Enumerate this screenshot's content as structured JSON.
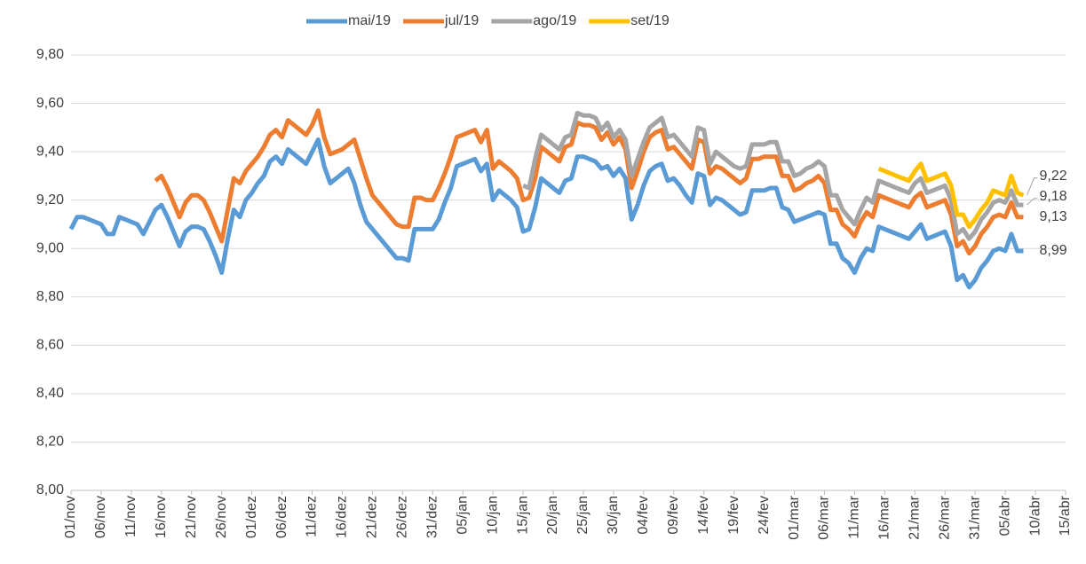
{
  "chart_data": {
    "type": "line",
    "categories": [
      "01/nov",
      null,
      null,
      null,
      null,
      "06/nov",
      null,
      null,
      null,
      null,
      "11/nov",
      null,
      null,
      null,
      null,
      "16/nov",
      null,
      null,
      null,
      null,
      "21/nov",
      null,
      null,
      null,
      null,
      "26/nov",
      null,
      null,
      null,
      null,
      "01/dez",
      null,
      null,
      null,
      null,
      "06/dez",
      null,
      null,
      null,
      null,
      "11/dez",
      null,
      null,
      null,
      null,
      "16/dez",
      null,
      null,
      null,
      null,
      "21/dez",
      null,
      null,
      null,
      null,
      "26/dez",
      null,
      null,
      null,
      null,
      "31/dez",
      null,
      null,
      null,
      null,
      "05/jan",
      null,
      null,
      null,
      null,
      "10/jan",
      null,
      null,
      null,
      null,
      "15/jan",
      null,
      null,
      null,
      null,
      "20/jan",
      null,
      null,
      null,
      null,
      "25/jan",
      null,
      null,
      null,
      null,
      "30/jan",
      null,
      null,
      null,
      null,
      "04/fev",
      null,
      null,
      null,
      null,
      "09/fev",
      null,
      null,
      null,
      null,
      "14/fev",
      null,
      null,
      null,
      null,
      "19/fev",
      null,
      null,
      null,
      null,
      "24/fev",
      null,
      null,
      null,
      null,
      "01/mar",
      null,
      null,
      null,
      null,
      "06/mar",
      null,
      null,
      null,
      null,
      "11/mar",
      null,
      null,
      null,
      null,
      "16/mar",
      null,
      null,
      null,
      null,
      "21/mar",
      null,
      null,
      null,
      null,
      "26/mar",
      null,
      null,
      null,
      null,
      "31/mar",
      null,
      null,
      null,
      null,
      "05/abr",
      null,
      null,
      null,
      null,
      "10/abr",
      null,
      null,
      null,
      null,
      "15/abr"
    ],
    "series": [
      {
        "name": "mai/19",
        "color": "#5b9bd5",
        "last_label": "8,99",
        "values": [
          9.08,
          9.13,
          9.13,
          9.12,
          9.11,
          9.1,
          9.06,
          9.06,
          9.13,
          9.12,
          9.11,
          9.1,
          9.06,
          9.11,
          9.16,
          9.18,
          9.13,
          9.07,
          9.01,
          9.07,
          9.09,
          9.09,
          9.08,
          9.03,
          8.97,
          8.9,
          9.04,
          9.16,
          9.13,
          9.2,
          9.23,
          9.27,
          9.3,
          9.36,
          9.38,
          9.35,
          9.41,
          9.39,
          9.37,
          9.35,
          9.4,
          9.45,
          9.34,
          9.27,
          9.29,
          9.31,
          9.33,
          9.27,
          9.18,
          9.11,
          9.08,
          9.05,
          9.02,
          8.99,
          8.96,
          8.96,
          8.95,
          9.08,
          9.08,
          9.08,
          9.08,
          9.12,
          9.19,
          9.25,
          9.34,
          9.35,
          9.36,
          9.37,
          9.32,
          9.35,
          9.2,
          9.24,
          9.22,
          9.2,
          9.17,
          9.07,
          9.08,
          9.17,
          9.29,
          9.27,
          9.25,
          9.23,
          9.28,
          9.29,
          9.38,
          9.38,
          9.37,
          9.36,
          9.33,
          9.34,
          9.3,
          9.33,
          9.29,
          9.12,
          9.18,
          9.26,
          9.32,
          9.34,
          9.35,
          9.28,
          9.29,
          9.26,
          9.22,
          9.19,
          9.31,
          9.3,
          9.18,
          9.21,
          9.2,
          9.18,
          9.16,
          9.14,
          9.15,
          9.24,
          9.24,
          9.24,
          9.25,
          9.25,
          9.17,
          9.16,
          9.11,
          9.12,
          9.13,
          9.14,
          9.15,
          9.14,
          9.02,
          9.02,
          8.96,
          8.94,
          8.9,
          8.96,
          9.0,
          8.99,
          9.09,
          9.08,
          9.07,
          9.06,
          9.05,
          9.04,
          9.07,
          9.1,
          9.04,
          9.05,
          9.06,
          9.07,
          9.01,
          8.87,
          8.89,
          8.84,
          8.87,
          8.92,
          8.95,
          8.99,
          9.0,
          8.99,
          9.06,
          8.99,
          8.99,
          null,
          null,
          null,
          null,
          null,
          null,
          null
        ]
      },
      {
        "name": "jul/19",
        "color": "#ed7d31",
        "last_label": "9,13",
        "values": [
          null,
          null,
          null,
          null,
          null,
          null,
          null,
          null,
          null,
          null,
          null,
          null,
          null,
          null,
          9.28,
          9.3,
          9.25,
          9.19,
          9.13,
          9.19,
          9.22,
          9.22,
          9.2,
          9.15,
          9.09,
          9.03,
          9.16,
          9.29,
          9.27,
          9.32,
          9.35,
          9.38,
          9.42,
          9.47,
          9.49,
          9.46,
          9.53,
          9.51,
          9.49,
          9.47,
          9.51,
          9.57,
          9.46,
          9.39,
          9.4,
          9.41,
          9.43,
          9.45,
          9.37,
          9.29,
          9.22,
          9.19,
          9.16,
          9.13,
          9.1,
          9.09,
          9.09,
          9.21,
          9.21,
          9.2,
          9.2,
          9.25,
          9.31,
          9.38,
          9.46,
          9.47,
          9.48,
          9.49,
          9.44,
          9.49,
          9.33,
          9.36,
          9.34,
          9.32,
          9.29,
          9.2,
          9.21,
          9.29,
          9.42,
          9.4,
          9.38,
          9.36,
          9.42,
          9.43,
          9.52,
          9.51,
          9.51,
          9.5,
          9.45,
          9.48,
          9.43,
          9.46,
          9.41,
          9.25,
          9.32,
          9.4,
          9.46,
          9.48,
          9.49,
          9.41,
          9.42,
          9.39,
          9.36,
          9.33,
          9.45,
          9.44,
          9.31,
          9.34,
          9.33,
          9.31,
          9.29,
          9.27,
          9.29,
          9.37,
          9.37,
          9.38,
          9.38,
          9.38,
          9.3,
          9.3,
          9.24,
          9.25,
          9.27,
          9.28,
          9.3,
          9.27,
          9.16,
          9.16,
          9.1,
          9.08,
          9.05,
          9.11,
          9.15,
          9.13,
          9.22,
          9.21,
          9.2,
          9.19,
          9.18,
          9.17,
          9.21,
          9.23,
          9.17,
          9.18,
          9.19,
          9.2,
          9.14,
          9.01,
          9.03,
          8.98,
          9.01,
          9.06,
          9.09,
          9.13,
          9.14,
          9.13,
          9.19,
          9.13,
          9.13,
          null,
          null,
          null,
          null,
          null,
          null,
          null
        ]
      },
      {
        "name": "ago/19",
        "color": "#a5a5a5",
        "last_label": "9,18",
        "values": [
          null,
          null,
          null,
          null,
          null,
          null,
          null,
          null,
          null,
          null,
          null,
          null,
          null,
          null,
          null,
          null,
          null,
          null,
          null,
          null,
          null,
          null,
          null,
          null,
          null,
          null,
          null,
          null,
          null,
          null,
          null,
          null,
          null,
          null,
          null,
          null,
          null,
          null,
          null,
          null,
          null,
          null,
          null,
          null,
          null,
          null,
          null,
          null,
          null,
          null,
          null,
          null,
          null,
          null,
          null,
          null,
          null,
          null,
          null,
          null,
          null,
          null,
          null,
          null,
          null,
          null,
          null,
          null,
          null,
          null,
          null,
          null,
          null,
          null,
          null,
          9.26,
          9.25,
          9.37,
          9.47,
          9.45,
          9.43,
          9.41,
          9.46,
          9.47,
          9.56,
          9.55,
          9.55,
          9.54,
          9.49,
          9.52,
          9.46,
          9.49,
          9.45,
          9.3,
          9.37,
          9.44,
          9.5,
          9.52,
          9.54,
          9.46,
          9.47,
          9.44,
          9.41,
          9.38,
          9.5,
          9.49,
          9.35,
          9.4,
          9.38,
          9.36,
          9.34,
          9.33,
          9.34,
          9.43,
          9.43,
          9.43,
          9.44,
          9.44,
          9.36,
          9.36,
          9.3,
          9.31,
          9.33,
          9.34,
          9.36,
          9.34,
          9.22,
          9.22,
          9.16,
          9.13,
          9.1,
          9.16,
          9.21,
          9.19,
          9.28,
          9.27,
          9.26,
          9.25,
          9.24,
          9.23,
          9.27,
          9.29,
          9.23,
          9.24,
          9.25,
          9.26,
          9.2,
          9.06,
          9.08,
          9.04,
          9.07,
          9.12,
          9.15,
          9.19,
          9.2,
          9.19,
          9.24,
          9.18,
          9.18,
          null,
          null,
          null,
          null,
          null,
          null,
          null
        ]
      },
      {
        "name": "set/19",
        "color": "#ffc000",
        "last_label": "9,22",
        "values": [
          null,
          null,
          null,
          null,
          null,
          null,
          null,
          null,
          null,
          null,
          null,
          null,
          null,
          null,
          null,
          null,
          null,
          null,
          null,
          null,
          null,
          null,
          null,
          null,
          null,
          null,
          null,
          null,
          null,
          null,
          null,
          null,
          null,
          null,
          null,
          null,
          null,
          null,
          null,
          null,
          null,
          null,
          null,
          null,
          null,
          null,
          null,
          null,
          null,
          null,
          null,
          null,
          null,
          null,
          null,
          null,
          null,
          null,
          null,
          null,
          null,
          null,
          null,
          null,
          null,
          null,
          null,
          null,
          null,
          null,
          null,
          null,
          null,
          null,
          null,
          null,
          null,
          null,
          null,
          null,
          null,
          null,
          null,
          null,
          null,
          null,
          null,
          null,
          null,
          null,
          null,
          null,
          null,
          null,
          null,
          null,
          null,
          null,
          null,
          null,
          null,
          null,
          null,
          null,
          null,
          null,
          null,
          null,
          null,
          null,
          null,
          null,
          null,
          null,
          null,
          null,
          null,
          null,
          null,
          null,
          null,
          null,
          null,
          null,
          null,
          null,
          null,
          null,
          null,
          null,
          null,
          null,
          null,
          null,
          9.33,
          9.32,
          9.31,
          9.3,
          9.29,
          9.28,
          9.32,
          9.35,
          9.28,
          9.29,
          9.3,
          9.31,
          9.26,
          9.14,
          9.14,
          9.09,
          9.12,
          9.16,
          9.19,
          9.24,
          9.23,
          9.22,
          9.3,
          9.23,
          9.22,
          null,
          null,
          null,
          null,
          null,
          null,
          null
        ]
      }
    ],
    "ylim": [
      8.0,
      9.8
    ],
    "yticks": [
      {
        "value": 8.0,
        "label": "8,00"
      },
      {
        "value": 8.2,
        "label": "8,20"
      },
      {
        "value": 8.4,
        "label": "8,40"
      },
      {
        "value": 8.6,
        "label": "8,60"
      },
      {
        "value": 8.8,
        "label": "8,80"
      },
      {
        "value": 9.0,
        "label": "9,00"
      },
      {
        "value": 9.2,
        "label": "9,20"
      },
      {
        "value": 9.4,
        "label": "9,40"
      },
      {
        "value": 9.6,
        "label": "9,60"
      },
      {
        "value": 9.8,
        "label": "9,80"
      }
    ],
    "grid": true,
    "legend": "top"
  }
}
